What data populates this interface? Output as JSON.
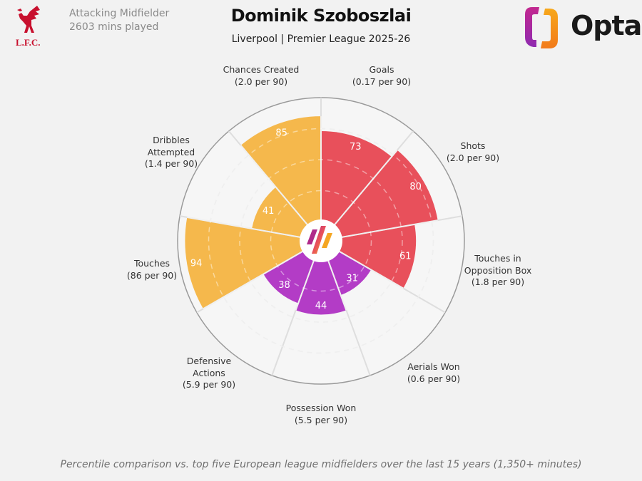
{
  "header": {
    "title": "Dominik Szoboszlai",
    "subtitle": "Liverpool | Premier League 2025-26",
    "position": "Attacking Midfielder",
    "minutes": "2603 mins played",
    "club_logo_text": "L.F.C.",
    "brand_logo_text": "Opta"
  },
  "footer": "Percentile comparison vs. top five European league midfielders over the last 15 years (1,350+ minutes)",
  "colors": {
    "attacking": "#e8505b",
    "possession": "#f5b84c",
    "defending": "#b33cc6",
    "background": "#f2f2f2"
  },
  "chart_data": {
    "type": "polar-bar",
    "scale": "percentile",
    "rlim": [
      0,
      100
    ],
    "grid_rings": [
      25,
      50,
      75
    ],
    "direction": "clockwise from top",
    "metrics": [
      {
        "name": "Goals",
        "sub": "(0.17 per 90)",
        "value": 73,
        "group": "attacking"
      },
      {
        "name": "Shots",
        "sub": "(2.0 per 90)",
        "value": 80,
        "group": "attacking"
      },
      {
        "name": "Touches in Opposition Box",
        "line1": "Touches in",
        "line2": "Opposition Box",
        "sub": "(1.8 per 90)",
        "value": 61,
        "group": "attacking"
      },
      {
        "name": "Aerials Won",
        "sub": "(0.6 per 90)",
        "value": 31,
        "group": "defending"
      },
      {
        "name": "Possession Won",
        "sub": "(5.5 per 90)",
        "value": 44,
        "group": "defending"
      },
      {
        "name": "Defensive Actions",
        "line1": "Defensive",
        "line2": "Actions",
        "sub": "(5.9 per 90)",
        "value": 38,
        "group": "defending"
      },
      {
        "name": "Touches",
        "sub": "(86 per 90)",
        "value": 94,
        "group": "possession"
      },
      {
        "name": "Dribbles Attempted",
        "line1": "Dribbles",
        "line2": "Attempted",
        "sub": "(1.4 per 90)",
        "value": 41,
        "group": "possession"
      },
      {
        "name": "Chances Created",
        "sub": "(2.0 per 90)",
        "value": 85,
        "group": "possession"
      }
    ]
  }
}
